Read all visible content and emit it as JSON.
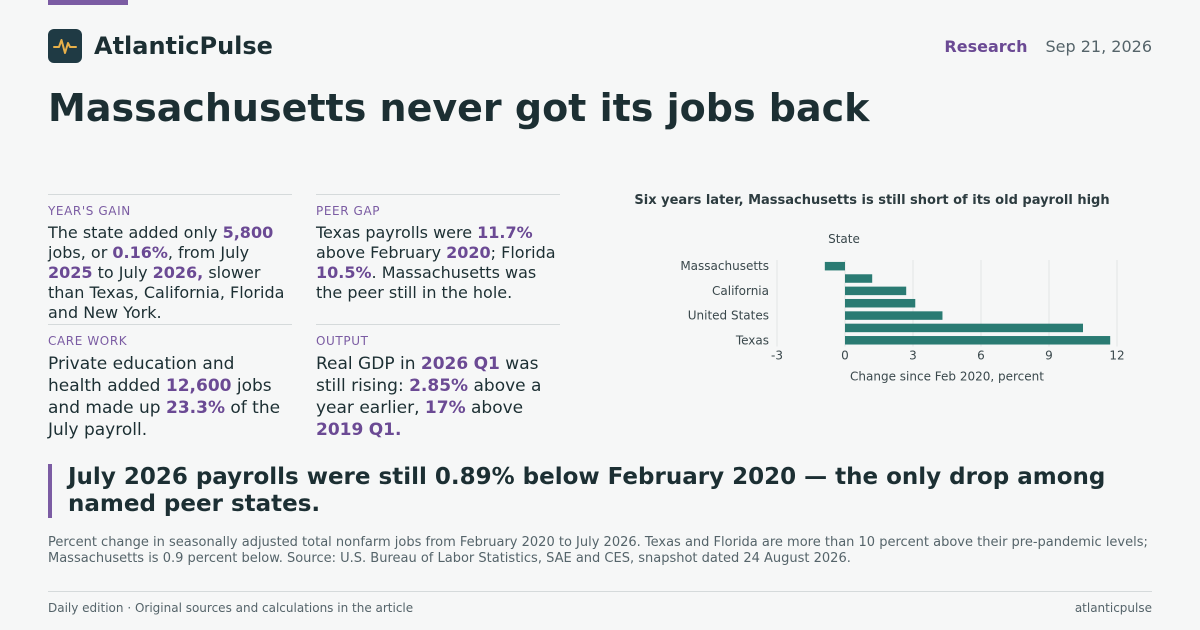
{
  "colors": {
    "accent": "#7b5ca3",
    "bar": "#2a7b73",
    "ink": "#1c2f33"
  },
  "header": {
    "logo_icon": "pulse-icon",
    "brand": "AtlanticPulse",
    "section": "Research",
    "date": "Sep 21, 2026"
  },
  "headline": "Massachusetts never got its jobs back",
  "cards": [
    {
      "label": "YEAR'S GAIN",
      "parts": [
        {
          "t": "The state added only "
        },
        {
          "t": "5,800",
          "h": true
        },
        {
          "t": " jobs, or "
        },
        {
          "t": "0.16%",
          "h": true
        },
        {
          "t": ", from July "
        },
        {
          "t": "2025",
          "h": true
        },
        {
          "t": " to July "
        },
        {
          "t": "2026,",
          "h": true
        },
        {
          "t": " slower than Texas, California, Florida and New York."
        }
      ]
    },
    {
      "label": "PEER GAP",
      "parts": [
        {
          "t": "Texas payrolls were "
        },
        {
          "t": "11.7%",
          "h": true
        },
        {
          "t": " above February "
        },
        {
          "t": "2020",
          "h": true
        },
        {
          "t": "; Florida "
        },
        {
          "t": "10.5%",
          "h": true
        },
        {
          "t": ". Massachusetts was the peer still in the hole."
        }
      ]
    },
    {
      "label": "CARE WORK",
      "parts": [
        {
          "t": "Private education and health added "
        },
        {
          "t": "12,600",
          "h": true
        },
        {
          "t": " jobs and made up "
        },
        {
          "t": "23.3%",
          "h": true
        },
        {
          "t": " of the July payroll."
        }
      ]
    },
    {
      "label": "OUTPUT",
      "parts": [
        {
          "t": "Real GDP in "
        },
        {
          "t": "2026",
          "h": true
        },
        {
          "t": " "
        },
        {
          "t": "Q1",
          "h": true
        },
        {
          "t": " was still rising: "
        },
        {
          "t": "2.85%",
          "h": true
        },
        {
          "t": " above a year earlier, "
        },
        {
          "t": "17%",
          "h": true
        },
        {
          "t": " above "
        },
        {
          "t": "2019",
          "h": true
        },
        {
          "t": " "
        },
        {
          "t": "Q1.",
          "h": true
        }
      ]
    }
  ],
  "chart_data": {
    "type": "bar",
    "orientation": "horizontal",
    "title": "Six years later, Massachusetts is still short of its old payroll high",
    "y_axis_title": "State",
    "xlabel": "Change since Feb 2020, percent",
    "categories": [
      "Massachusetts",
      "",
      "California",
      "",
      "United States",
      "",
      "Texas"
    ],
    "values": [
      -0.89,
      1.2,
      2.7,
      3.1,
      4.3,
      10.5,
      11.7
    ],
    "xlim": [
      -3,
      12
    ],
    "xticks": [
      -3,
      0,
      3,
      6,
      9,
      12
    ],
    "grid": true,
    "legend": "none"
  },
  "callout": "July 2026 payrolls were still 0.89% below February 2020 — the only drop among named peer states.",
  "note": "Percent change in seasonally adjusted total nonfarm jobs from February 2020 to July 2026. Texas and Florida are more than 10 percent above their pre-pandemic levels; Massachusetts is 0.9 percent below. Source: U.S. Bureau of Labor Statistics, SAE and CES, snapshot dated 24 August 2026.",
  "footer": {
    "left": "Daily edition · Original sources and calculations in the article",
    "right": "atlanticpulse"
  }
}
